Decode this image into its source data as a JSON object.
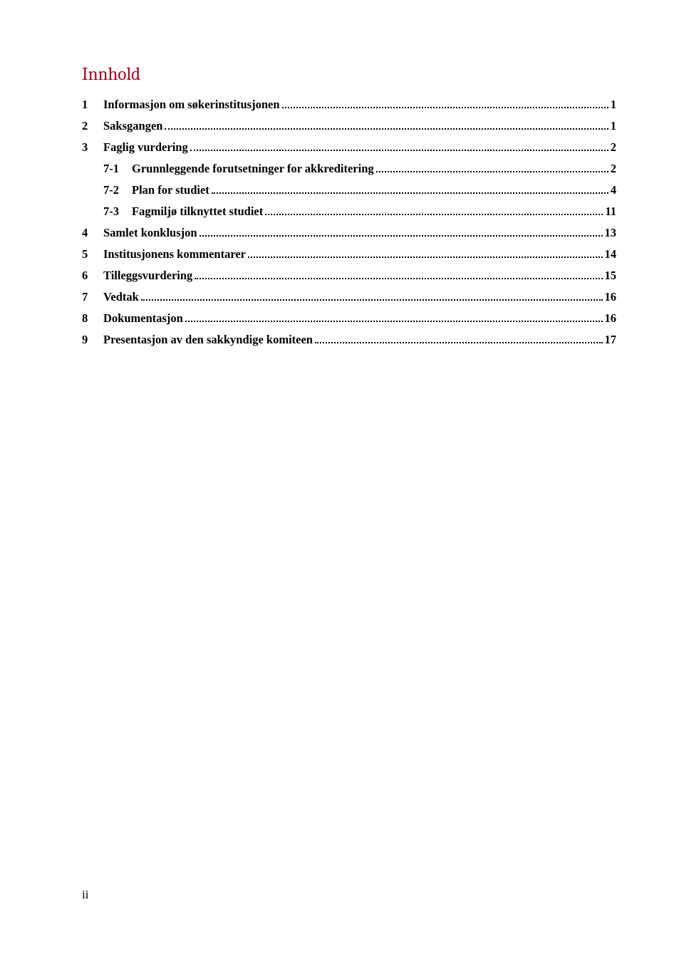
{
  "title": "Innhold",
  "title_color": "#a50021",
  "title_fontsize": 25,
  "entry_fontsize": 16.5,
  "entry_fontweight": "bold",
  "text_color": "#000000",
  "background_color": "#ffffff",
  "toc": [
    {
      "num": "1",
      "text": "Informasjon om søkerinstitusjonen",
      "page": "1",
      "level": 0
    },
    {
      "num": "2",
      "text": "Saksgangen",
      "page": "1",
      "level": 0
    },
    {
      "num": "3",
      "text": "Faglig vurdering",
      "page": "2",
      "level": 0
    },
    {
      "num": "7-1",
      "text": "Grunnleggende forutsetninger for akkreditering",
      "page": "2",
      "level": 1
    },
    {
      "num": "7-2",
      "text": "Plan for studiet",
      "page": "4",
      "level": 1
    },
    {
      "num": "7-3",
      "text": "Fagmiljø tilknyttet studiet",
      "page": "11",
      "level": 1
    },
    {
      "num": "4",
      "text": "Samlet konklusjon",
      "page": "13",
      "level": 0
    },
    {
      "num": "5",
      "text": "Institusjonens kommentarer",
      "page": "14",
      "level": 0
    },
    {
      "num": "6",
      "text": "Tilleggsvurdering",
      "page": "15",
      "level": 0
    },
    {
      "num": "7",
      "text": "Vedtak",
      "page": "16",
      "level": 0
    },
    {
      "num": "8",
      "text": "Dokumentasjon",
      "page": "16",
      "level": 0
    },
    {
      "num": "9",
      "text": "Presentasjon av den sakkyndige komiteen",
      "page": "17",
      "level": 0
    }
  ],
  "page_number": "ii"
}
